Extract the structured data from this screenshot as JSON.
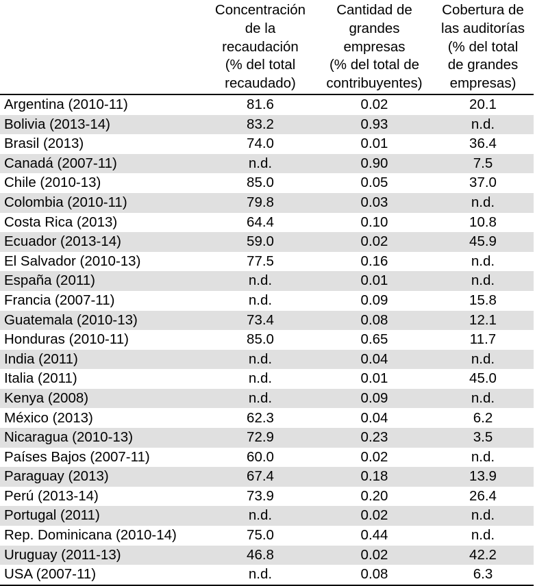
{
  "table": {
    "headers": [
      [],
      [
        "Concentración",
        "de la",
        "recaudación",
        "(% del total",
        "recaudado)"
      ],
      [
        "Cantidad de",
        "grandes",
        "empresas",
        "(% del total de",
        "contribuyentes)"
      ],
      [
        "Cobertura de",
        "las auditorías",
        "(% del total",
        "de grandes",
        "empresas)"
      ]
    ],
    "rows": [
      [
        "Argentina (2010-11)",
        "81.6",
        "0.02",
        "20.1"
      ],
      [
        "Bolivia (2013-14)",
        "83.2",
        "0.93",
        "n.d."
      ],
      [
        "Brasil (2013)",
        "74.0",
        "0.01",
        "36.4"
      ],
      [
        "Canadá (2007-11)",
        "n.d.",
        "0.90",
        "7.5"
      ],
      [
        "Chile (2010-13)",
        "85.0",
        "0.05",
        "37.0"
      ],
      [
        "Colombia (2010-11)",
        "79.8",
        "0.03",
        "n.d."
      ],
      [
        "Costa Rica (2013)",
        "64.4",
        "0.10",
        "10.8"
      ],
      [
        "Ecuador (2013-14)",
        "59.0",
        "0.02",
        "45.9"
      ],
      [
        "El Salvador (2010-13)",
        "77.5",
        "0.16",
        "n.d."
      ],
      [
        "España (2011)",
        "n.d.",
        "0.01",
        "n.d."
      ],
      [
        "Francia (2007-11)",
        "n.d.",
        "0.09",
        "15.8"
      ],
      [
        "Guatemala (2010-13)",
        "73.4",
        "0.08",
        "12.1"
      ],
      [
        "Honduras (2010-11)",
        "85.0",
        "0.65",
        "11.7"
      ],
      [
        "India (2011)",
        "n.d.",
        "0.04",
        "n.d."
      ],
      [
        "Italia (2011)",
        "n.d.",
        "0.01",
        "45.0"
      ],
      [
        "Kenya (2008)",
        "n.d.",
        "0.09",
        "n.d."
      ],
      [
        "México (2013)",
        "62.3",
        "0.04",
        "6.2"
      ],
      [
        "Nicaragua (2010-13)",
        "72.9",
        "0.23",
        "3.5"
      ],
      [
        "Países Bajos (2007-11)",
        "60.0",
        "0.02",
        "n.d."
      ],
      [
        "Paraguay (2013)",
        "67.4",
        "0.18",
        "13.9"
      ],
      [
        "Perú (2013-14)",
        "73.9",
        "0.20",
        "26.4"
      ],
      [
        "Portugal (2011)",
        "n.d.",
        "0.02",
        "n.d."
      ],
      [
        "Rep. Dominicana (2010-14)",
        "75.0",
        "0.44",
        "n.d."
      ],
      [
        "Uruguay (2011-13)",
        "46.8",
        "0.02",
        "42.2"
      ],
      [
        "USA (2007-11)",
        "n.d.",
        "0.08",
        "6.3"
      ]
    ]
  },
  "colors": {
    "stripe": "#e0e0e0",
    "rule": "#000000"
  }
}
